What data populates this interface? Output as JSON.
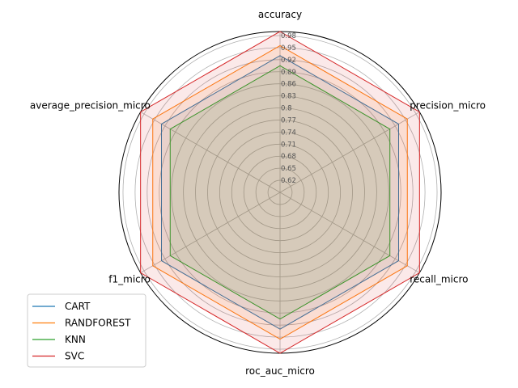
{
  "chart_data": {
    "type": "radar",
    "axes": [
      "accuracy",
      "precision_micro",
      "recall_micro",
      "roc_auc_micro",
      "f1_micro",
      "average_precision_micro"
    ],
    "rlim": [
      0.59,
      0.99
    ],
    "rticks": [
      0.62,
      0.65,
      0.68,
      0.71,
      0.74,
      0.77,
      0.8,
      0.83,
      0.86,
      0.89,
      0.92,
      0.95,
      0.98
    ],
    "rtick_labels": [
      "0.62",
      "0.65",
      "0.68",
      "0.71",
      "0.74",
      "0.77",
      "0.8",
      "0.83",
      "0.86",
      "0.89",
      "0.92",
      "0.95",
      "0.98"
    ],
    "grid": true,
    "legend_position": "lower-left",
    "series": [
      {
        "name": "CART",
        "color": "#1f77b4",
        "values": [
          0.93,
          0.93,
          0.93,
          0.93,
          0.93,
          0.93
        ]
      },
      {
        "name": "RANDFOREST",
        "color": "#ff7f0e",
        "values": [
          0.955,
          0.955,
          0.955,
          0.955,
          0.955,
          0.955
        ]
      },
      {
        "name": "KNN",
        "color": "#2ca02c",
        "values": [
          0.905,
          0.905,
          0.905,
          0.905,
          0.905,
          0.905
        ]
      },
      {
        "name": "SVC",
        "color": "#d62728",
        "values": [
          0.99,
          0.99,
          0.99,
          0.99,
          0.99,
          0.99
        ]
      }
    ]
  }
}
